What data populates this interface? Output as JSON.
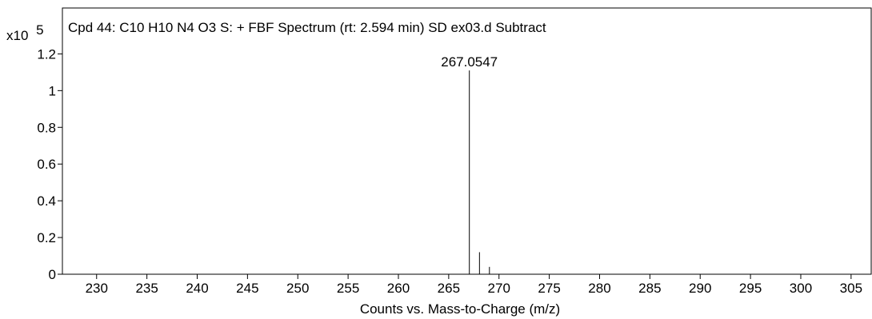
{
  "chart_data": {
    "type": "bar",
    "title": "Cpd 44: C10 H10 N4 O3 S: + FBF Spectrum (rt: 2.594 min) SD ex03.d  Subtract",
    "xlabel": "Counts vs. Mass-to-Charge (m/z)",
    "ylabel": "",
    "y_multiplier": {
      "base": "x10",
      "exponent": "5"
    },
    "xlim": [
      226.6,
      307.0
    ],
    "ylim": [
      0,
      1.45
    ],
    "x_ticks": [
      230,
      235,
      240,
      245,
      250,
      255,
      260,
      265,
      270,
      275,
      280,
      285,
      290,
      295,
      300,
      305
    ],
    "x_tick_labels": [
      "230",
      "235",
      "240",
      "245",
      "250",
      "255",
      "260",
      "265",
      "270",
      "275",
      "280",
      "285",
      "290",
      "295",
      "300",
      "305"
    ],
    "y_ticks": [
      0,
      0.2,
      0.4,
      0.6,
      0.8,
      1,
      1.2
    ],
    "y_tick_labels": [
      "0",
      "0.2",
      "0.4",
      "0.6",
      "0.8",
      "1",
      "1.2"
    ],
    "peaks": [
      {
        "mz": 267.0547,
        "intensity": 1.11,
        "label": "267.0547"
      },
      {
        "mz": 268.06,
        "intensity": 0.12,
        "label": ""
      },
      {
        "mz": 269.05,
        "intensity": 0.04,
        "label": ""
      }
    ],
    "grid": false,
    "colors": {
      "peak": "#000000",
      "axis": "#000000"
    }
  }
}
